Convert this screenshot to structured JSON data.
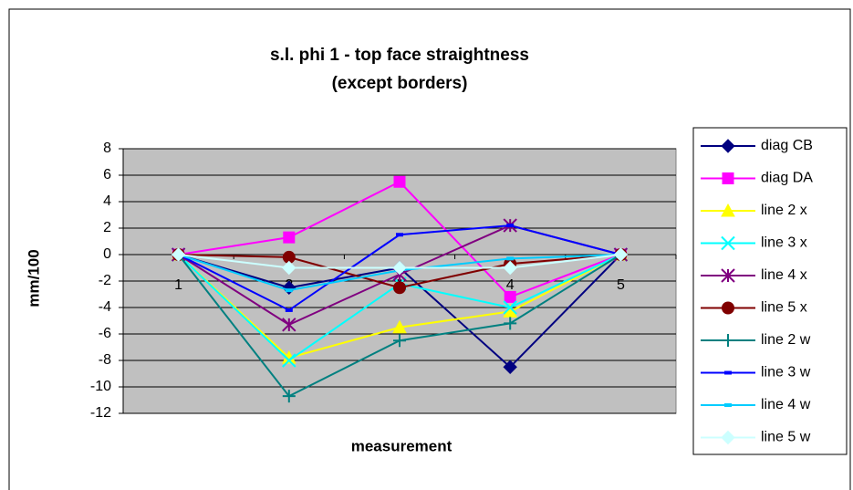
{
  "chart_data": {
    "type": "line",
    "title": [
      "s.l. phi 1 - top face straightness",
      "(except borders)"
    ],
    "x_label": "measurement",
    "y_label": "mm/100",
    "categories": [
      "1",
      "2",
      "3",
      "4",
      "5"
    ],
    "ylim": [
      -12,
      8
    ],
    "yticks": [
      -12,
      -10,
      -8,
      -6,
      -4,
      -2,
      0,
      2,
      4,
      6,
      8
    ],
    "grid": true,
    "legend": "right",
    "series": [
      {
        "name": "diag CB",
        "color": "#000080",
        "marker": "diamond",
        "values": [
          0,
          -2.5,
          -1,
          -8.5,
          0
        ]
      },
      {
        "name": "diag DA",
        "color": "#ff00ff",
        "marker": "square",
        "values": [
          0,
          1.3,
          5.5,
          -3.2,
          0
        ]
      },
      {
        "name": "line 2 x",
        "color": "#ffff00",
        "marker": "triangle",
        "values": [
          0,
          -7.8,
          -5.5,
          -4.3,
          0
        ]
      },
      {
        "name": "line 3 x",
        "color": "#00ffff",
        "marker": "x",
        "values": [
          0,
          -8,
          -2.2,
          -4,
          0
        ]
      },
      {
        "name": "line 4 x",
        "color": "#800080",
        "marker": "star",
        "values": [
          0,
          -5.3,
          -1.5,
          2.2,
          0
        ]
      },
      {
        "name": "line 5 x",
        "color": "#800000",
        "marker": "circle",
        "values": [
          0,
          -0.2,
          -2.5,
          -0.7,
          0
        ]
      },
      {
        "name": "line 2 w",
        "color": "#008080",
        "marker": "plus",
        "values": [
          0,
          -10.7,
          -6.5,
          -5.2,
          0
        ]
      },
      {
        "name": "line 3 w",
        "color": "#0000ff",
        "marker": "dash",
        "values": [
          0,
          -4.2,
          1.5,
          2.2,
          0
        ]
      },
      {
        "name": "line 4 w",
        "color": "#00ccff",
        "marker": "dash",
        "values": [
          0,
          -2.7,
          -1.2,
          -0.3,
          0
        ]
      },
      {
        "name": "line 5 w",
        "color": "#ccffff",
        "marker": "diamond",
        "values": [
          0,
          -1,
          -1,
          -1,
          0
        ]
      }
    ]
  }
}
